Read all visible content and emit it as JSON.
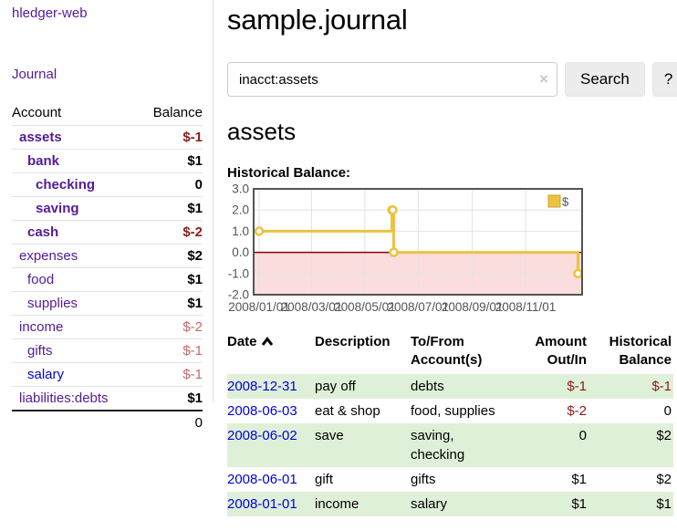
{
  "sidebar": {
    "brand": "hledger-web",
    "journal_link": "Journal",
    "accounts_table": {
      "headers": {
        "account": "Account",
        "balance": "Balance"
      },
      "rows": [
        {
          "label": "assets",
          "indent": 0,
          "in_view": true,
          "balance": "$-1",
          "balance_tone": "negative-strong"
        },
        {
          "label": "bank",
          "indent": 1,
          "in_view": true,
          "balance": "$1",
          "balance_tone": "normal"
        },
        {
          "label": "checking",
          "indent": 2,
          "in_view": true,
          "balance": "0",
          "balance_tone": "normal"
        },
        {
          "label": "saving",
          "indent": 2,
          "in_view": true,
          "balance": "$1",
          "balance_tone": "normal"
        },
        {
          "label": "cash",
          "indent": 1,
          "in_view": true,
          "balance": "$-2",
          "balance_tone": "negative-strong"
        },
        {
          "label": "expenses",
          "indent": 0,
          "in_view": false,
          "balance": "$2",
          "balance_tone": "normal"
        },
        {
          "label": "food",
          "indent": 1,
          "in_view": false,
          "balance": "$1",
          "balance_tone": "normal"
        },
        {
          "label": "supplies",
          "indent": 1,
          "in_view": false,
          "balance": "$1",
          "balance_tone": "normal"
        },
        {
          "label": "income",
          "indent": 0,
          "in_view": false,
          "balance": "$-2",
          "balance_tone": "negative-soft"
        },
        {
          "label": "gifts",
          "indent": 1,
          "in_view": false,
          "balance": "$-1",
          "balance_tone": "negative-soft"
        },
        {
          "label": "salary",
          "indent": 1,
          "in_view": false,
          "link_tone": "unvisited",
          "balance": "$-1",
          "balance_tone": "negative-soft"
        },
        {
          "label": "liabilities:debts",
          "indent": 0,
          "in_view": false,
          "balance": "$1",
          "balance_tone": "normal"
        }
      ],
      "total": "0"
    }
  },
  "header": {
    "title": "sample.journal"
  },
  "search": {
    "value": "inacct:assets",
    "clear_icon": "×",
    "button_label": "Search",
    "help_label": "?"
  },
  "account_page": {
    "title": "assets",
    "chart_heading": "Historical Balance:"
  },
  "chart_data": {
    "type": "line",
    "step": true,
    "series": [
      {
        "name": "$",
        "color": "#edc240",
        "points": [
          [
            "2008-01-01",
            1
          ],
          [
            "2008-06-01",
            2
          ],
          [
            "2008-06-02",
            2
          ],
          [
            "2008-06-03",
            0
          ],
          [
            "2008-12-31",
            -1
          ]
        ]
      }
    ],
    "ylim": [
      -2,
      3
    ],
    "yticks": [
      "3.0",
      "2.0",
      "1.0",
      "0.0",
      "-1.0",
      "-2.0"
    ],
    "ytick_values": [
      3,
      2,
      1,
      0,
      -1,
      -2
    ],
    "xticks": [
      "2008/01/01",
      "2008/03/01",
      "2008/05/01",
      "2008/07/01",
      "2008/09/01",
      "2008/11/01"
    ],
    "xtick_dates": [
      "2008-01-01",
      "2008-03-01",
      "2008-05-01",
      "2008-07-01",
      "2008-09-01",
      "2008-11-01"
    ],
    "xrange": [
      "2008-01-01",
      "2008-12-31"
    ],
    "legend": "$",
    "legend_position": "top-right",
    "grid": true,
    "negative_region_fill": "#fcdddd",
    "zero_line_color": "#8b0000",
    "grid_color": "#e2e2e2",
    "border_color": "#545454",
    "tick_label_color": "#545454"
  },
  "register_table": {
    "headers": [
      "Date",
      "Description",
      "To/From Account(s)",
      "Amount Out/In",
      "Historical Balance"
    ],
    "sort_column": "Date",
    "sort_direction": "ascending",
    "rows": [
      {
        "date": "2008-12-31",
        "description": "pay off",
        "accounts": "debts",
        "amount": "$-1",
        "amount_negative": true,
        "balance": "$-1",
        "balance_negative": true
      },
      {
        "date": "2008-06-03",
        "description": "eat & shop",
        "accounts": "food, supplies",
        "amount": "$-2",
        "amount_negative": true,
        "balance": "0",
        "balance_negative": false
      },
      {
        "date": "2008-06-02",
        "description": "save",
        "accounts": "saving, checking",
        "amount": "0",
        "amount_negative": false,
        "balance": "$2",
        "balance_negative": false
      },
      {
        "date": "2008-06-01",
        "description": "gift",
        "accounts": "gifts",
        "amount": "$1",
        "amount_negative": false,
        "balance": "$2",
        "balance_negative": false
      },
      {
        "date": "2008-01-01",
        "description": "income",
        "accounts": "salary",
        "amount": "$1",
        "amount_negative": false,
        "balance": "$1",
        "balance_negative": false
      }
    ]
  },
  "colors": {
    "visited_link_purple": "#551a97",
    "unvisited_link_blue": "#0000dd",
    "negative_strong_red": "#8c1b1b",
    "negative_soft_red": "#c36969",
    "row_stripe_green": "#dff0d8",
    "chart_line_yellow": "#edc240"
  }
}
